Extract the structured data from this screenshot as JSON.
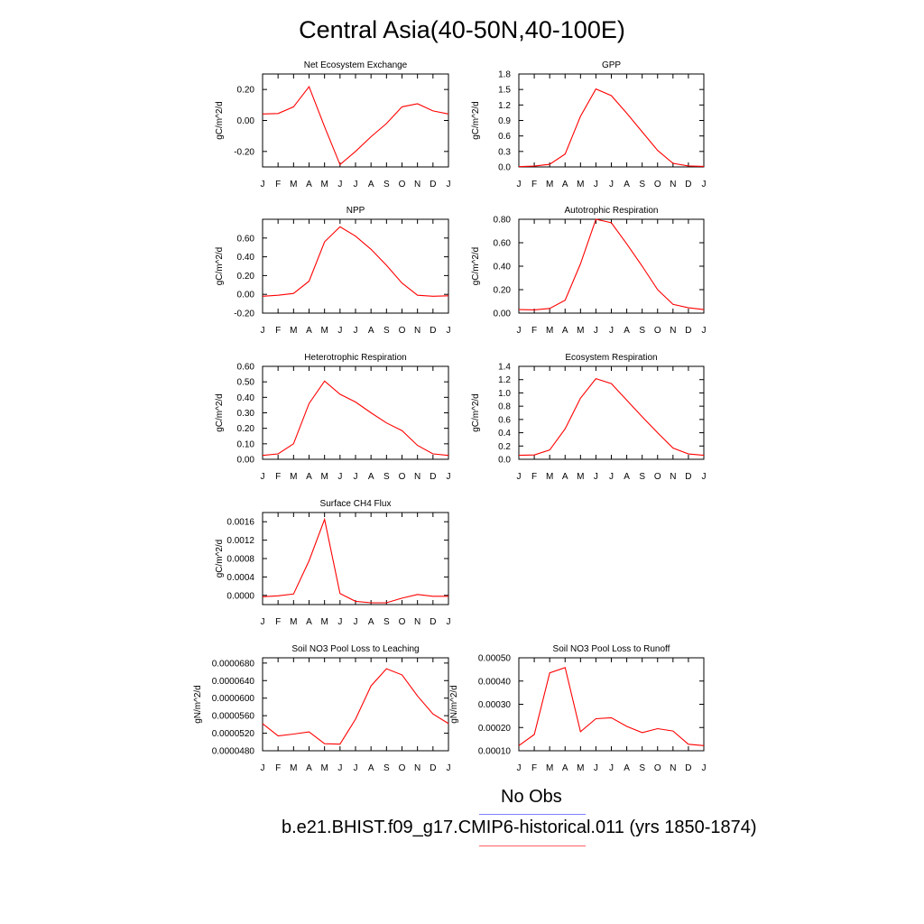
{
  "title": "Central Asia(40-50N,40-100E)",
  "legend": {
    "obs_label": "No Obs",
    "obs_color": "#8080ff",
    "run_label": "b.e21.BHIST.f09_g17.CMIP6-historical.011 (yrs 1850-1874)",
    "run_color": "#ff6060"
  },
  "line_color": "#ff0000",
  "chart_data": [
    {
      "type": "line",
      "title": "Net Ecosystem Exchange",
      "ylabel": "gC/m^2/d",
      "categories": [
        "J",
        "F",
        "M",
        "A",
        "M",
        "J",
        "J",
        "A",
        "S",
        "O",
        "N",
        "D",
        "J"
      ],
      "ylim": [
        -0.3,
        0.3
      ],
      "yticks": [
        -0.2,
        0.0,
        0.2
      ],
      "ytick_labels": [
        "-0.20",
        "0.00",
        "0.20"
      ],
      "values": [
        0.042,
        0.045,
        0.088,
        0.218,
        -0.04,
        -0.285,
        -0.2,
        -0.105,
        -0.02,
        0.088,
        0.108,
        0.062,
        0.042
      ]
    },
    {
      "type": "line",
      "title": "GPP",
      "ylabel": "gC/m^2/d",
      "categories": [
        "J",
        "F",
        "M",
        "A",
        "M",
        "J",
        "J",
        "A",
        "S",
        "O",
        "N",
        "D",
        "J"
      ],
      "ylim": [
        0,
        1.8
      ],
      "yticks": [
        0,
        0.3,
        0.6,
        0.9,
        1.2,
        1.5,
        1.8
      ],
      "ytick_labels": [
        "0.0",
        "0.3",
        "0.6",
        "0.9",
        "1.2",
        "1.5",
        "1.8"
      ],
      "values": [
        0.005,
        0.015,
        0.05,
        0.25,
        0.98,
        1.51,
        1.38,
        1.04,
        0.68,
        0.32,
        0.07,
        0.02,
        0.01
      ]
    },
    {
      "type": "line",
      "title": "NPP",
      "ylabel": "gC/m^2/d",
      "categories": [
        "J",
        "F",
        "M",
        "A",
        "M",
        "J",
        "J",
        "A",
        "S",
        "O",
        "N",
        "D",
        "J"
      ],
      "ylim": [
        -0.2,
        0.8
      ],
      "yticks": [
        -0.2,
        0.0,
        0.2,
        0.4,
        0.6
      ],
      "ytick_labels": [
        "-0.20",
        "0.00",
        "0.20",
        "0.40",
        "0.60"
      ],
      "values": [
        -0.02,
        -0.01,
        0.01,
        0.14,
        0.56,
        0.72,
        0.62,
        0.48,
        0.31,
        0.12,
        -0.01,
        -0.02,
        -0.015
      ]
    },
    {
      "type": "line",
      "title": "Autotrophic Respiration",
      "ylabel": "gC/m^2/d",
      "categories": [
        "J",
        "F",
        "M",
        "A",
        "M",
        "J",
        "J",
        "A",
        "S",
        "O",
        "N",
        "D",
        "J"
      ],
      "ylim": [
        0,
        0.8
      ],
      "yticks": [
        0,
        0.2,
        0.4,
        0.6,
        0.8
      ],
      "ytick_labels": [
        "0.00",
        "0.20",
        "0.40",
        "0.60",
        "0.80"
      ],
      "values": [
        0.03,
        0.028,
        0.04,
        0.11,
        0.42,
        0.8,
        0.77,
        0.59,
        0.4,
        0.2,
        0.075,
        0.045,
        0.03
      ]
    },
    {
      "type": "line",
      "title": "Heterotrophic Respiration",
      "ylabel": "gC/m^2/d",
      "categories": [
        "J",
        "F",
        "M",
        "A",
        "M",
        "J",
        "J",
        "A",
        "S",
        "O",
        "N",
        "D",
        "J"
      ],
      "ylim": [
        0,
        0.6
      ],
      "yticks": [
        0,
        0.1,
        0.2,
        0.3,
        0.4,
        0.5,
        0.6
      ],
      "ytick_labels": [
        "0.00",
        "0.10",
        "0.20",
        "0.30",
        "0.40",
        "0.50",
        "0.60"
      ],
      "values": [
        0.025,
        0.035,
        0.1,
        0.36,
        0.505,
        0.42,
        0.37,
        0.3,
        0.235,
        0.185,
        0.09,
        0.035,
        0.025
      ]
    },
    {
      "type": "line",
      "title": "Ecosystem Respiration",
      "ylabel": "gC/m^2/d",
      "categories": [
        "J",
        "F",
        "M",
        "A",
        "M",
        "J",
        "J",
        "A",
        "S",
        "O",
        "N",
        "D",
        "J"
      ],
      "ylim": [
        0,
        1.4
      ],
      "yticks": [
        0,
        0.2,
        0.4,
        0.6,
        0.8,
        1.0,
        1.2,
        1.4
      ],
      "ytick_labels": [
        "0.0",
        "0.2",
        "0.4",
        "0.6",
        "0.8",
        "1.0",
        "1.2",
        "1.4"
      ],
      "values": [
        0.06,
        0.065,
        0.14,
        0.46,
        0.92,
        1.215,
        1.14,
        0.89,
        0.64,
        0.4,
        0.17,
        0.08,
        0.06
      ]
    },
    {
      "type": "line",
      "title": "Surface CH4 Flux",
      "ylabel": "gC/m^2/d",
      "categories": [
        "J",
        "F",
        "M",
        "A",
        "M",
        "J",
        "J",
        "A",
        "S",
        "O",
        "N",
        "D",
        "J"
      ],
      "ylim": [
        -0.0002,
        0.0018
      ],
      "yticks": [
        0,
        0.0004,
        0.0008,
        0.0012,
        0.0016
      ],
      "ytick_labels": [
        "0.0000",
        "0.0004",
        "0.0008",
        "0.0012",
        "0.0016"
      ],
      "values": [
        -3e-05,
        -1e-05,
        3e-05,
        0.00075,
        0.00165,
        4e-05,
        -0.00013,
        -0.00016,
        -0.00016,
        -6e-05,
        2e-05,
        -2e-05,
        -2e-05
      ]
    },
    {
      "type": "line",
      "title": "Soil NO3 Pool Loss to Leaching",
      "ylabel": "gN/m^2/d",
      "categories": [
        "J",
        "F",
        "M",
        "A",
        "M",
        "J",
        "J",
        "A",
        "S",
        "O",
        "N",
        "D",
        "J"
      ],
      "ylim": [
        4.8e-05,
        6.92e-05
      ],
      "yticks": [
        4.8e-05,
        5.2e-05,
        5.6e-05,
        6e-05,
        6.4e-05,
        6.8e-05
      ],
      "ytick_labels": [
        "0.0000480",
        "0.0000520",
        "0.0000560",
        "0.0000600",
        "0.0000640",
        "0.0000680"
      ],
      "values": [
        5.42e-05,
        5.14e-05,
        5.18e-05,
        5.23e-05,
        4.96e-05,
        4.95e-05,
        5.52e-05,
        6.28e-05,
        6.67e-05,
        6.53e-05,
        6.05e-05,
        5.64e-05,
        5.42e-05
      ]
    },
    {
      "type": "line",
      "title": "Soil NO3 Pool Loss to Runoff",
      "ylabel": "gN/m^2/d",
      "categories": [
        "J",
        "F",
        "M",
        "A",
        "M",
        "J",
        "J",
        "A",
        "S",
        "O",
        "N",
        "D",
        "J"
      ],
      "ylim": [
        0.0001,
        0.0005
      ],
      "yticks": [
        0.0001,
        0.0002,
        0.0003,
        0.0004,
        0.0005
      ],
      "ytick_labels": [
        "0.00010",
        "0.00020",
        "0.00030",
        "0.00040",
        "0.00050"
      ],
      "values": [
        0.000122,
        0.00017,
        0.000435,
        0.000458,
        0.000182,
        0.000238,
        0.000242,
        0.000205,
        0.000178,
        0.000195,
        0.000185,
        0.000128,
        0.000122
      ]
    }
  ]
}
